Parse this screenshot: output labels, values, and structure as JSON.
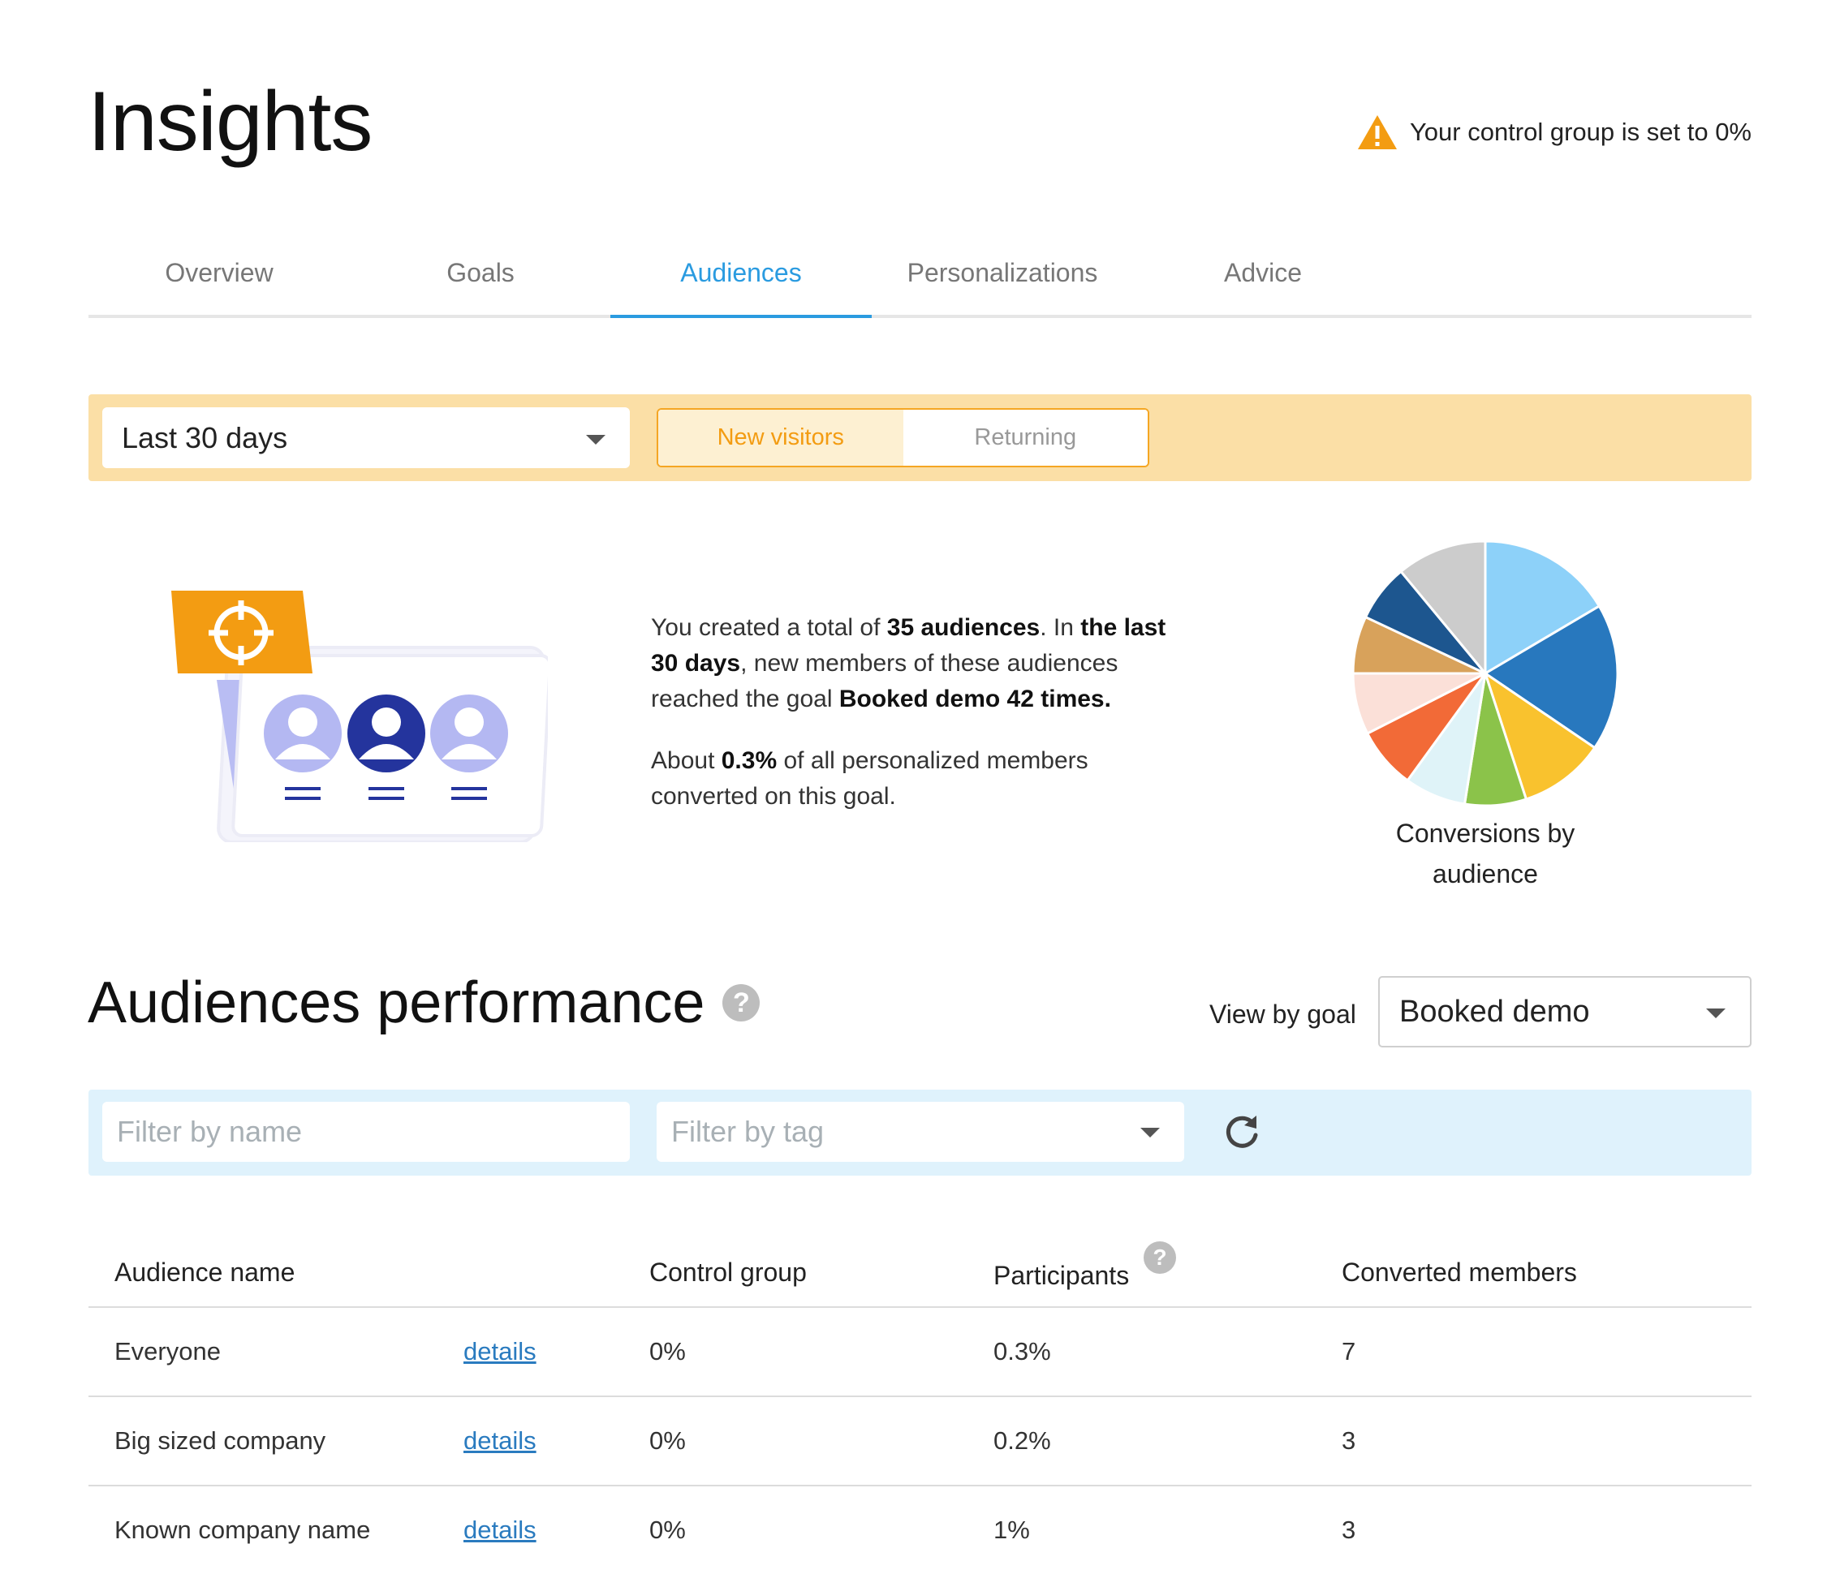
{
  "header": {
    "title": "Insights",
    "warning_text": "Your control group is set to 0%",
    "warning_color": "#f39c12"
  },
  "tabs": [
    {
      "label": "Overview",
      "active": false
    },
    {
      "label": "Goals",
      "active": false
    },
    {
      "label": "Audiences",
      "active": true
    },
    {
      "label": "Personalizations",
      "active": false
    },
    {
      "label": "Advice",
      "active": false
    }
  ],
  "filters": {
    "date_range": "Last 30 days",
    "visitor_toggle": {
      "options": [
        "New visitors",
        "Returning"
      ],
      "selected": "New visitors"
    }
  },
  "summary": {
    "p1_a": "You created a total of ",
    "p1_b": "35 audiences",
    "p1_c": ". In ",
    "p1_d": "the last 30 days",
    "p1_e": ", new members of these audiences reached the goal ",
    "p1_f": "Booked demo 42 times.",
    "p2_a": "About ",
    "p2_b": "0.3%",
    "p2_c": " of all personalized members converted on this goal."
  },
  "pie": {
    "caption": "Conversions by audience",
    "slice_colors": [
      "#8dd1f9",
      "#2878be",
      "#f9c22e",
      "#8bc34a",
      "#dff3f8",
      "#f26a37",
      "#fbe0d8",
      "#d8a25b",
      "#1d568f",
      "#cccccc"
    ],
    "slice_fractions": [
      0.165,
      0.18,
      0.105,
      0.075,
      0.075,
      0.075,
      0.075,
      0.07,
      0.07,
      0.11
    ]
  },
  "performance": {
    "title": "Audiences performance",
    "view_by_label": "View by goal",
    "goal_selected": "Booked demo",
    "filter_name_placeholder": "Filter by name",
    "filter_tag_placeholder": "Filter by tag"
  },
  "table": {
    "headers": {
      "name": "Audience name",
      "control": "Control group",
      "participants": "Participants",
      "converted": "Converted members"
    },
    "rows": [
      {
        "name": "Everyone",
        "link": "details",
        "control": "0%",
        "participants": "0.3%",
        "converted": "7"
      },
      {
        "name": "Big sized company",
        "link": "details",
        "control": "0%",
        "participants": "0.2%",
        "converted": "3"
      },
      {
        "name": "Known company name",
        "link": "details",
        "control": "0%",
        "participants": "1%",
        "converted": "3"
      }
    ]
  }
}
